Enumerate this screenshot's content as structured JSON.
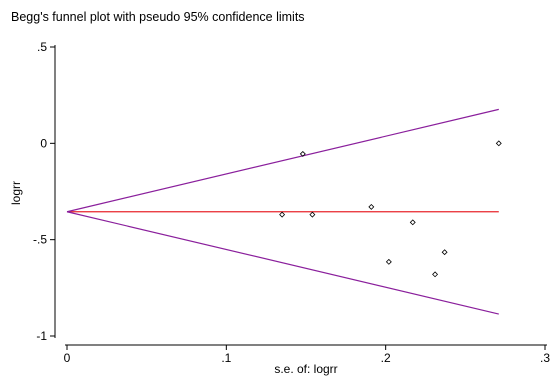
{
  "chart_data": {
    "type": "scatter",
    "title": "Begg's funnel plot with pseudo 95% confidence limits",
    "xlabel": "s.e. of: logrr",
    "ylabel": "logrr",
    "xlim": [
      0,
      0.3
    ],
    "ylim": [
      -1,
      0.5
    ],
    "xticks": [
      {
        "value": 0,
        "label": "0"
      },
      {
        "value": 0.1,
        "label": ".1"
      },
      {
        "value": 0.2,
        "label": ".2"
      },
      {
        "value": 0.3,
        "label": ".3"
      }
    ],
    "yticks": [
      {
        "value": 0.5,
        "label": ".5"
      },
      {
        "value": 0,
        "label": "0"
      },
      {
        "value": -0.5,
        "label": "-.5"
      },
      {
        "value": -1,
        "label": "-1"
      }
    ],
    "grid": false,
    "pooled_estimate": -0.355,
    "max_se": 0.271,
    "points": [
      {
        "x": 0.135,
        "y": -0.37
      },
      {
        "x": 0.148,
        "y": -0.055
      },
      {
        "x": 0.154,
        "y": -0.37
      },
      {
        "x": 0.191,
        "y": -0.33
      },
      {
        "x": 0.202,
        "y": -0.615
      },
      {
        "x": 0.217,
        "y": -0.41
      },
      {
        "x": 0.231,
        "y": -0.68
      },
      {
        "x": 0.237,
        "y": -0.565
      },
      {
        "x": 0.271,
        "y": 0.0
      }
    ],
    "colors": {
      "pooled_line": "#e8262d",
      "limit_lines": "#8a1f9c",
      "points": "#000000"
    }
  }
}
